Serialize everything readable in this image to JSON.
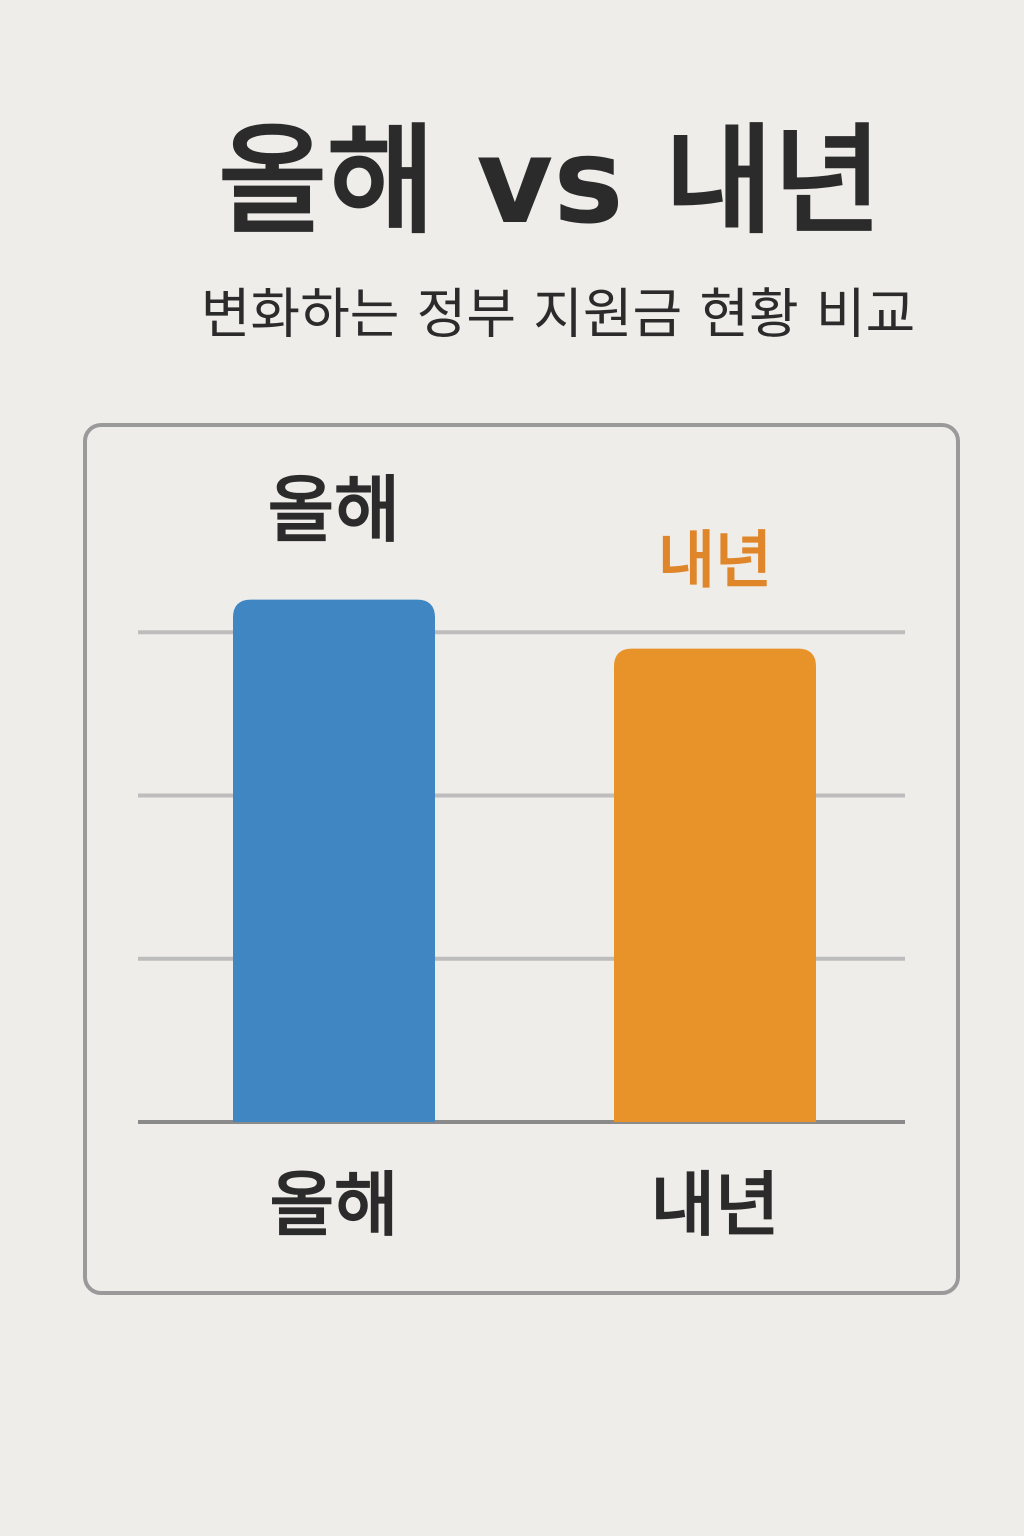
{
  "chart_data": {
    "type": "bar",
    "title": "올해 vs 내년",
    "subtitle": "변화하는 정부 지원금 현황 비교",
    "categories": [
      "올해",
      "내년"
    ],
    "values": [
      3.2,
      2.9
    ],
    "colors": [
      "#3f86c2",
      "#e8922a"
    ],
    "top_label_colors": [
      "#2b2b2b",
      "#e0862a"
    ],
    "ylim": [
      0,
      4
    ],
    "yticks": [
      0,
      1,
      2,
      3
    ],
    "grid": true,
    "tick_labels": false
  }
}
